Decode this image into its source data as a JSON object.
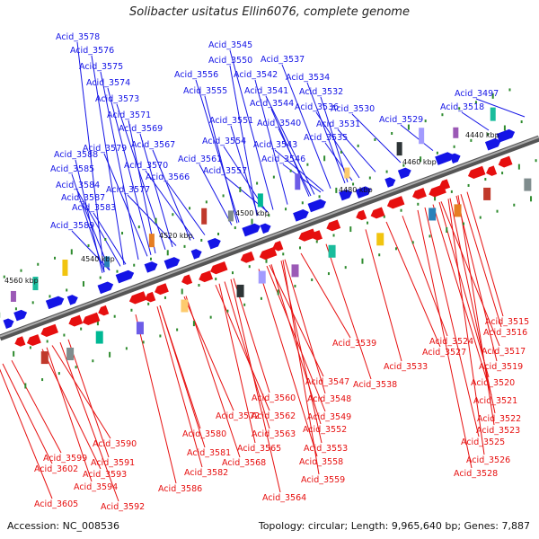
{
  "title": "Solibacter usitatus Ellin6076, complete genome",
  "footer": {
    "accession": "Accession: NC_008536",
    "summary": "Topology: circular; Length: 9,965,640 bp; Genes: 7,887"
  },
  "colors": {
    "forward": "#1414e6",
    "reverse": "#e60f0f",
    "backbone": "#888888",
    "tick": "#2e8b2e"
  },
  "scale_labels": [
    "4440 kbp",
    "4460 kbp",
    "4480 kbp",
    "4500 kbp",
    "4520 kbp",
    "4540 kbp",
    "4560 kbp"
  ],
  "forward_genes": [
    "Acid_3578",
    "Acid_3576",
    "Acid_3575",
    "Acid_3574",
    "Acid_3573",
    "Acid_3571",
    "Acid_3569",
    "Acid_3567",
    "Acid_3579",
    "Acid_3570",
    "Acid_3588",
    "Acid_3585",
    "Acid_3566",
    "Acid_3584",
    "Acid_3577",
    "Acid_3587",
    "Acid_3583",
    "Acid_3589",
    "Acid_3545",
    "Acid_3537",
    "Acid_3550",
    "Acid_3542",
    "Acid_3534",
    "Acid_3556",
    "Acid_3541",
    "Acid_3532",
    "Acid_3555",
    "Acid_3544",
    "Acid_3536",
    "Acid_3530",
    "Acid_3551",
    "Acid_3540",
    "Acid_3531",
    "Acid_3554",
    "Acid_3543",
    "Acid_3535",
    "Acid_3561",
    "Acid_3546",
    "Acid_3557",
    "Acid_3497",
    "Acid_3518",
    "Acid_3529"
  ],
  "reverse_genes": [
    "Acid_3515",
    "Acid_3516",
    "Acid_3524",
    "Acid_3539",
    "Acid_3527",
    "Acid_3517",
    "Acid_3533",
    "Acid_3519",
    "Acid_3538",
    "Acid_3520",
    "Acid_3547",
    "Acid_3521",
    "Acid_3560",
    "Acid_3548",
    "Acid_3522",
    "Acid_3572",
    "Acid_3562",
    "Acid_3549",
    "Acid_3523",
    "Acid_3580",
    "Acid_3563",
    "Acid_3552",
    "Acid_3525",
    "Acid_3590",
    "Acid_3565",
    "Acid_3553",
    "Acid_3581",
    "Acid_3599",
    "Acid_3568",
    "Acid_3558",
    "Acid_3526",
    "Acid_3591",
    "Acid_3582",
    "Acid_3602",
    "Acid_3528",
    "Acid_3593",
    "Acid_3559",
    "Acid_3586",
    "Acid_3594",
    "Acid_3564",
    "Acid_3605",
    "Acid_3592"
  ]
}
